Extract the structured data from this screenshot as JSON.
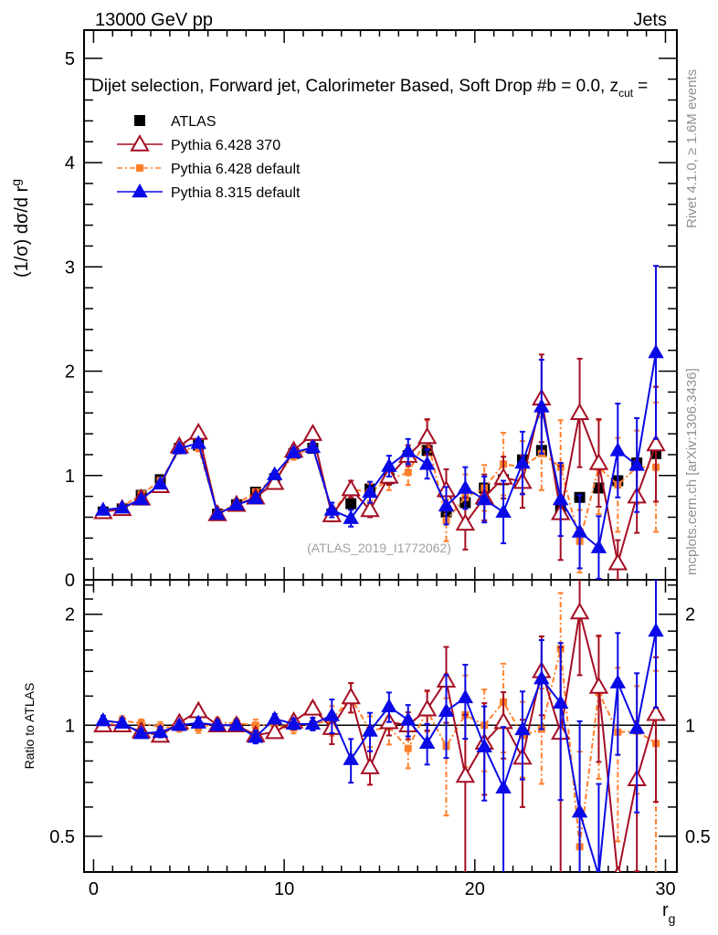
{
  "header": {
    "left": "13000 GeV pp",
    "right": "Jets"
  },
  "chart_data": {
    "type": "scatter",
    "title": "Dijet selection, Forward jet, Calorimeter Based, Soft Drop #b = 0.0, z",
    "title_sub": "cut",
    "title_tail": "=",
    "ylabel": "(1/σ) dσ/d r",
    "ylabel_sub": "g",
    "xlabel": "r",
    "xlabel_sub": "g",
    "ratio_ylabel": "Ratio to ATLAS",
    "xlim": [
      -0.5,
      30.6
    ],
    "ylim": [
      0,
      5.27
    ],
    "ratio_ylim": [
      0.4,
      2.48
    ],
    "ratio_scale": "log",
    "x_ticks": [
      "0",
      "10",
      "20",
      "30"
    ],
    "y_ticks": [
      "0",
      "1",
      "2",
      "3",
      "4",
      "5"
    ],
    "ratio_ticks": [
      "0.5",
      "1",
      "2"
    ],
    "legend_position": "top-left",
    "watermark": "(ATLAS_2019_I1772062)",
    "side_text_top": "Rivet 4.1.0, ≥ 1.6M events",
    "side_text_bottom": "mcplots.cern.ch [arXiv:1306.3436]",
    "x": [
      0.5,
      1.5,
      2.5,
      3.5,
      4.5,
      5.5,
      6.5,
      7.5,
      8.5,
      9.5,
      10.5,
      11.5,
      12.5,
      13.5,
      14.5,
      15.5,
      16.5,
      17.5,
      18.5,
      19.5,
      20.5,
      21.5,
      22.5,
      23.5,
      24.5,
      25.5,
      26.5,
      27.5,
      28.5,
      29.5
    ],
    "series": [
      {
        "name": "ATLAS",
        "color": "#000000",
        "marker": "square",
        "values": [
          0.65,
          0.68,
          0.81,
          0.96,
          1.26,
          1.29,
          0.63,
          0.72,
          0.84,
          0.97,
          1.21,
          1.26,
          0.63,
          0.73,
          0.87,
          0.97,
          1.19,
          1.24,
          0.65,
          0.74,
          0.88,
          0.96,
          1.15,
          1.24,
          0.67,
          0.79,
          0.88,
          0.95,
          1.12,
          1.21
        ],
        "errors": [
          0.01,
          0.01,
          0.01,
          0.01,
          0.01,
          0.01,
          0.01,
          0.01,
          0.01,
          0.01,
          0.01,
          0.01,
          0.01,
          0.01,
          0.01,
          0.01,
          0.01,
          0.01,
          0.01,
          0.01,
          0.01,
          0.01,
          0.01,
          0.01,
          0.01,
          0.01,
          0.01,
          0.01,
          0.01,
          0.01
        ]
      },
      {
        "name": "Pythia 6.428 370",
        "color": "#a50e24",
        "marker": "open-triangle",
        "dash": "",
        "values": [
          0.65,
          0.68,
          0.78,
          0.9,
          1.28,
          1.41,
          0.63,
          0.72,
          0.79,
          0.93,
          1.24,
          1.4,
          0.62,
          0.87,
          0.67,
          0.99,
          1.19,
          1.37,
          0.86,
          0.54,
          0.79,
          0.98,
          0.94,
          1.74,
          0.64,
          1.6,
          1.12,
          0.16,
          0.8,
          1.3
        ],
        "errors": [
          0.02,
          0.02,
          0.02,
          0.03,
          0.03,
          0.04,
          0.02,
          0.02,
          0.03,
          0.03,
          0.04,
          0.05,
          0.06,
          0.08,
          0.07,
          0.08,
          0.1,
          0.17,
          0.2,
          0.25,
          0.22,
          0.2,
          0.25,
          0.42,
          0.45,
          0.52,
          0.42,
          0.22,
          0.35,
          0.55
        ]
      },
      {
        "name": "Pythia 6.428 default",
        "color": "#ff7f2a",
        "marker": "small-square",
        "dash": "6,3,2,3",
        "values": [
          0.65,
          0.7,
          0.82,
          0.95,
          1.24,
          1.27,
          0.64,
          0.73,
          0.84,
          0.97,
          1.19,
          1.27,
          0.65,
          0.87,
          0.84,
          0.96,
          1.03,
          1.36,
          0.57,
          0.79,
          0.88,
          1.11,
          1.08,
          1.21,
          1.08,
          0.37,
          1.08,
          0.91,
          1.08,
          1.08
        ],
        "errors": [
          0.02,
          0.02,
          0.02,
          0.03,
          0.03,
          0.04,
          0.02,
          0.02,
          0.03,
          0.03,
          0.04,
          0.05,
          0.06,
          0.08,
          0.08,
          0.1,
          0.12,
          0.17,
          0.2,
          0.22,
          0.22,
          0.3,
          0.25,
          0.35,
          0.45,
          0.3,
          0.45,
          0.45,
          0.35,
          0.62
        ]
      },
      {
        "name": "Pythia 8.315 default",
        "color": "#0a0ae6",
        "marker": "triangle",
        "dash": "",
        "values": [
          0.67,
          0.69,
          0.77,
          0.92,
          1.26,
          1.31,
          0.63,
          0.72,
          0.78,
          1.01,
          1.22,
          1.27,
          0.67,
          0.59,
          0.84,
          1.09,
          1.23,
          1.11,
          0.71,
          0.88,
          0.77,
          0.65,
          1.12,
          1.66,
          0.77,
          0.46,
          0.31,
          1.24,
          1.1,
          2.18
        ],
        "errors": [
          0.02,
          0.02,
          0.02,
          0.03,
          0.03,
          0.04,
          0.02,
          0.02,
          0.03,
          0.03,
          0.04,
          0.05,
          0.07,
          0.08,
          0.1,
          0.1,
          0.12,
          0.14,
          0.18,
          0.2,
          0.22,
          0.3,
          0.3,
          0.45,
          0.35,
          0.35,
          0.3,
          0.45,
          0.45,
          0.83
        ]
      }
    ]
  }
}
